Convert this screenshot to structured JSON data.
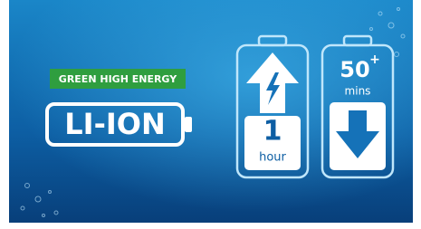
{
  "badge": {
    "text": "GREEN HIGH ENERGY"
  },
  "battery_type": {
    "text": "LI-ION"
  },
  "charge_battery": {
    "number": "1",
    "unit": "hour"
  },
  "runtime_battery": {
    "number": "50",
    "superscript": "+",
    "unit": "mins"
  }
}
